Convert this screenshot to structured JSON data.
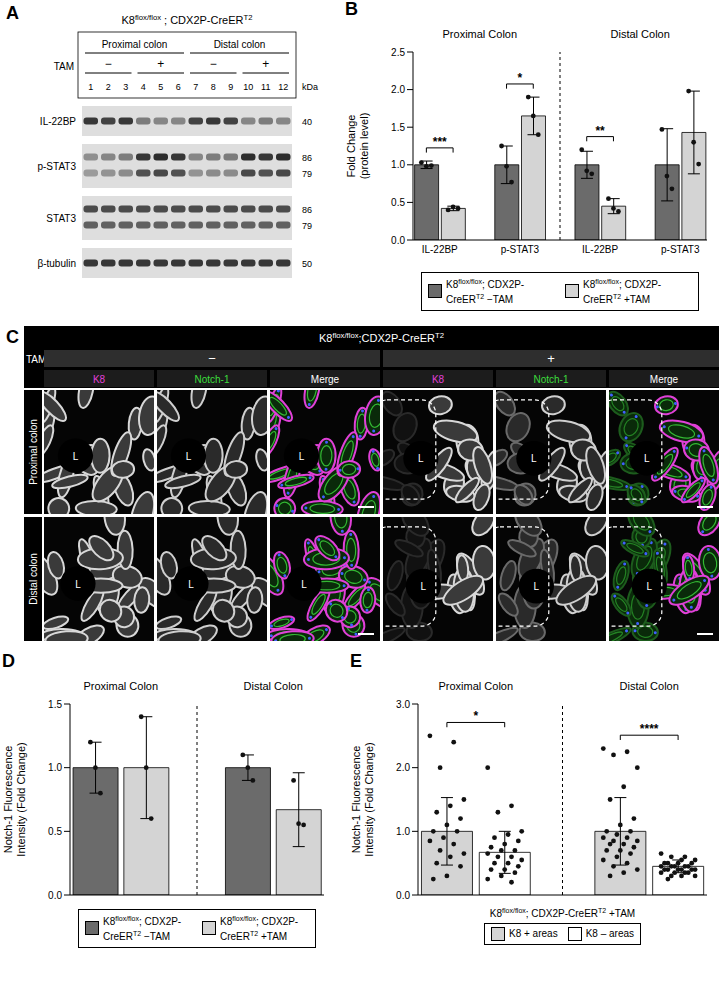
{
  "superscripts": [
    "flox/flox",
    "T2"
  ],
  "panels": [
    {
      "panel": "A",
      "type": "western_blot",
      "genotype": "K8flox/flox ; CDX2P-CreERT2",
      "regions": [
        "Proximal colon",
        "Distal colon"
      ],
      "treatment_label": "TAM",
      "treatments": [
        "−",
        "+",
        "−",
        "+"
      ],
      "lanes": [
        1,
        2,
        3,
        4,
        5,
        6,
        7,
        8,
        9,
        10,
        11,
        12
      ],
      "kda_label": "kDa",
      "rows": [
        {
          "label": "IL-22BP",
          "kda": [
            40
          ]
        },
        {
          "label": "p-STAT3",
          "kda": [
            86,
            79
          ]
        },
        {
          "label": "STAT3",
          "kda": [
            86,
            79
          ]
        },
        {
          "label": "β-tubulin",
          "kda": [
            50
          ]
        }
      ]
    },
    {
      "panel": "C",
      "type": "micrographs",
      "genotype": "K8flox/flox;CDX2P-CreERT2",
      "treatment_label": "TAM",
      "treatments": [
        "−",
        "+"
      ],
      "channels": [
        {
          "name": "K8",
          "color": "#e040d8"
        },
        {
          "name": "Notch-1",
          "color": "#3ddc3d"
        },
        {
          "name": "Merge",
          "color": "#ffffff"
        }
      ],
      "rows": [
        "Proximal colon",
        "Distal colon"
      ],
      "lumen_label": "L"
    }
  ],
  "chart_data": [
    {
      "panel": "B",
      "type": "bar",
      "ylabel": [
        "Fold Change",
        "(protein level)"
      ],
      "ylim": [
        0,
        2.5
      ],
      "yticks": [
        {
          "value": 0,
          "label": "0.0"
        },
        0.5,
        {
          "value": 1,
          "label": "1.0"
        },
        1.5,
        {
          "value": 2,
          "label": "2.0"
        },
        2.5
      ],
      "groups": [
        {
          "name": "Proximal Colon",
          "categories": [
            "IL-22BP",
            "p-STAT3"
          ]
        },
        {
          "name": "Distal Colon",
          "categories": [
            "IL-22BP",
            "p-STAT3"
          ]
        }
      ],
      "series": [
        {
          "name": "K8flox/flox; CDX2P-CreERT2 −TAM",
          "color": "#6b6b6b",
          "values": [
            1.0,
            1.0,
            1.0,
            1.0
          ],
          "errors": [
            0.05,
            0.25,
            0.18,
            0.48
          ],
          "points": [
            [
              1.03,
              0.98,
              0.99
            ],
            [
              1.25,
              0.98,
              0.77
            ],
            [
              1.2,
              0.92,
              0.88
            ],
            [
              1.47,
              0.85,
              0.68
            ]
          ]
        },
        {
          "name": "K8flox/flox; CDX2P-CreERT2 +TAM",
          "color": "#d4d4d4",
          "values": [
            0.42,
            1.65,
            0.45,
            1.43
          ],
          "errors": [
            0.03,
            0.25,
            0.1,
            0.55
          ],
          "points": [
            [
              0.4,
              0.44,
              0.42
            ],
            [
              1.9,
              1.65,
              1.4
            ],
            [
              0.55,
              0.42,
              0.38
            ],
            [
              1.98,
              1.3,
              1.01
            ]
          ]
        }
      ],
      "significance": [
        {
          "group": 0,
          "category": 0,
          "label": "***"
        },
        {
          "group": 0,
          "category": 1,
          "label": "*"
        },
        {
          "group": 1,
          "category": 0,
          "label": "**"
        }
      ],
      "legend": "bottom"
    },
    {
      "panel": "D",
      "type": "bar",
      "ylabel": [
        "Notch-1 Fluorescence",
        "Intensity (Fold Change)"
      ],
      "ylim": [
        0,
        1.5
      ],
      "yticks": [
        {
          "value": 0,
          "label": "0.0"
        },
        0.5,
        {
          "value": 1,
          "label": "1.0"
        },
        1.5
      ],
      "groups": [
        {
          "name": "Proximal Colon"
        },
        {
          "name": "Distal Colon"
        }
      ],
      "series": [
        {
          "name": "K8flox/flox; CDX2P-CreERT2 −TAM",
          "color": "#6b6b6b",
          "values": [
            1.0,
            1.0
          ],
          "errors": [
            0.2,
            0.1
          ],
          "points": [
            [
              1.2,
              1.0,
              0.8
            ],
            [
              1.1,
              1.0,
              0.9
            ]
          ]
        },
        {
          "name": "K8flox/flox; CDX2P-CreERT2 +TAM",
          "color": "#d4d4d4",
          "values": [
            1.0,
            0.67
          ],
          "errors": [
            0.4,
            0.29
          ],
          "points": [
            [
              1.4,
              1.0,
              0.6
            ],
            [
              0.9,
              0.56,
              0.55
            ]
          ]
        }
      ],
      "legend": "bottom"
    },
    {
      "panel": "E",
      "type": "bar",
      "ylabel": [
        "Notch-1 Fluorescence",
        "Intensity (Fold Change)"
      ],
      "xlabel": "K8flox/flox; CDX2P-CreERT2 +TAM",
      "ylim": [
        0,
        3
      ],
      "yticks": [
        {
          "value": 0,
          "label": "0.0"
        },
        {
          "value": 1,
          "label": "1.0"
        },
        {
          "value": 2,
          "label": "2.0"
        },
        {
          "value": 3,
          "label": "3.0"
        }
      ],
      "groups": [
        {
          "name": "Proximal Colon"
        },
        {
          "name": "Distal Colon"
        }
      ],
      "series": [
        {
          "name": "K8 + areas",
          "color": "#d4d4d4",
          "values": [
            1.0,
            1.0
          ],
          "errors": [
            0.53,
            0.53
          ],
          "points": [
            [
              2.5,
              2.4,
              2.0,
              1.5,
              1.4,
              1.3,
              1.2,
              1.1,
              1.0,
              1.0,
              0.9,
              0.85,
              0.8,
              0.7,
              0.65,
              0.6,
              0.5,
              0.45,
              0.3,
              0.25
            ],
            [
              2.3,
              2.25,
              2.2,
              2.0,
              1.7,
              1.5,
              1.2,
              1.1,
              1.0,
              1.0,
              0.95,
              0.9,
              0.9,
              0.85,
              0.85,
              0.8,
              0.8,
              0.75,
              0.7,
              0.7,
              0.65,
              0.6,
              0.55,
              0.5,
              0.45,
              0.4,
              0.35,
              0.3
            ]
          ]
        },
        {
          "name": "K8 – areas",
          "color": "#ffffff",
          "values": [
            0.67,
            0.45
          ],
          "errors": [
            0.33,
            0.1
          ],
          "points": [
            [
              2.0,
              1.4,
              1.3,
              1.0,
              0.95,
              0.9,
              0.85,
              0.8,
              0.75,
              0.7,
              0.7,
              0.65,
              0.6,
              0.6,
              0.55,
              0.5,
              0.5,
              0.45,
              0.4,
              0.4,
              0.35,
              0.3,
              0.25,
              0.2
            ],
            [
              0.65,
              0.6,
              0.6,
              0.55,
              0.55,
              0.5,
              0.5,
              0.5,
              0.5,
              0.45,
              0.45,
              0.45,
              0.45,
              0.45,
              0.4,
              0.4,
              0.4,
              0.4,
              0.4,
              0.4,
              0.35,
              0.35,
              0.35,
              0.35,
              0.3,
              0.3,
              0.3,
              0.25
            ]
          ]
        }
      ],
      "significance": [
        {
          "group": 0,
          "category": 0,
          "label": "*"
        },
        {
          "group": 1,
          "category": 0,
          "label": "****"
        }
      ],
      "legend": "bottom"
    }
  ]
}
